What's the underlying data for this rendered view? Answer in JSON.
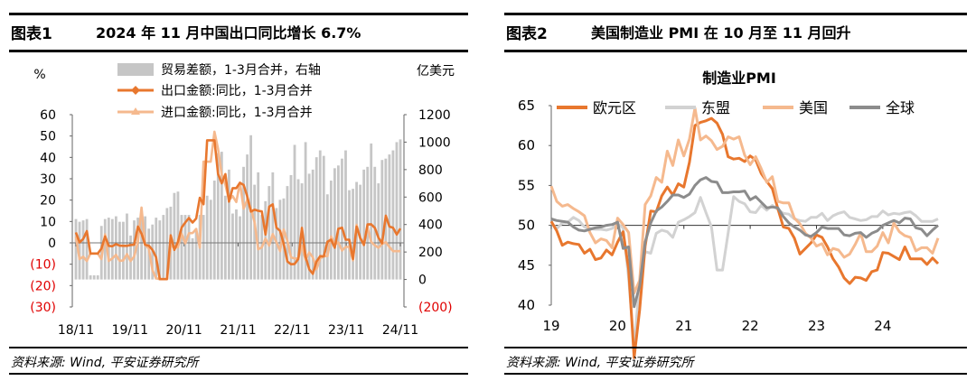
{
  "figures": [
    {
      "number": "图表1",
      "title": "2024 年 11 月中国出口同比增长 6.7%",
      "source": "资料来源: Wind, 平安证券研究所"
    },
    {
      "number": "图表2",
      "title": "美国制造业 PMI 在 10 月至 11 月回升",
      "source": "资料来源: Wind, 平安证券研究所"
    }
  ],
  "chart_data": [
    {
      "type": "bar+line",
      "title": "",
      "left_unit": "%",
      "right_unit": "亿美元",
      "ylim_left": [
        -30,
        60
      ],
      "ylim_right": [
        -200,
        1200
      ],
      "left_ticks": [
        "60",
        "50",
        "40",
        "30",
        "20",
        "10",
        "0",
        "(10)",
        "(20)",
        "(30)"
      ],
      "left_ticks_neg_color": "#e00000",
      "right_ticks": [
        "1200",
        "1000",
        "800",
        "600",
        "400",
        "200",
        "0",
        "(200)"
      ],
      "right_ticks_neg_color": "#e00000",
      "x_labels": [
        "18/11",
        "19/11",
        "20/11",
        "21/11",
        "22/11",
        "23/11",
        "24/11"
      ],
      "x_range": [
        "2018-11",
        "2024-11"
      ],
      "legend": [
        "贸易差额，1-3月合并，右轴",
        "出口金额:同比，1-3月合并",
        "进口金额:同比，1-3月合并"
      ],
      "colors": {
        "bar": "#c6c6c6",
        "export": "#e8772e",
        "import": "#f5b98e"
      },
      "trade_balance": [
        440,
        420,
        430,
        440,
        30,
        30,
        30,
        390,
        440,
        450,
        440,
        460,
        420,
        420,
        480,
        320,
        430,
        450,
        460,
        460,
        370,
        400,
        450,
        430,
        470,
        520,
        530,
        630,
        640,
        470,
        470,
        470,
        300,
        370,
        470,
        470,
        610,
        580,
        720,
        920,
        930,
        610,
        800,
        480,
        510,
        460,
        820,
        910,
        1050,
        690,
        780,
        470,
        570,
        680,
        780,
        520,
        580,
        590,
        680,
        760,
        980,
        730,
        700,
        1000,
        770,
        800,
        890,
        940,
        900,
        620,
        720,
        810,
        830,
        880,
        940,
        650,
        660,
        710,
        690,
        800,
        820,
        990,
        820,
        700,
        870,
        880,
        910,
        940,
        1000,
        1020
      ],
      "export_yoy": [
        4.9,
        0.2,
        1.8,
        5.5,
        -5,
        -5,
        -5,
        -2.7,
        3,
        -1.4,
        -1.6,
        -0.6,
        -1.3,
        -1.4,
        -1.4,
        -1,
        -0.9,
        7.6,
        4.3,
        -0.9,
        -1.3,
        -3.3,
        -6.7,
        -17,
        -17,
        -17,
        3.5,
        -3.3,
        0.5,
        7.2,
        9.5,
        11.6,
        9.5,
        11.4,
        21.1,
        18.1,
        48,
        48,
        48,
        32.3,
        27.9,
        32.2,
        19.3,
        25.6,
        25.6,
        28.1,
        27.1,
        21.7,
        14.6,
        15.5,
        15,
        14.7,
        3.9,
        16.9,
        18,
        7.1,
        5.6,
        -0.3,
        -8.7,
        -10,
        -9.9,
        -7.5,
        7,
        -6.4,
        -12.4,
        -14.5,
        -8.8,
        -6.2,
        -6.4,
        0.5,
        1.5,
        -2.3,
        6.6,
        7.1,
        1.5,
        1.5,
        -7.5,
        7.6,
        2.4,
        -1,
        8.6,
        8.7,
        7,
        2.4,
        -0.2,
        12.7,
        7.6,
        7.1,
        3.9,
        6.7
      ],
      "import_yoy": [
        3,
        -7.6,
        -6.5,
        -8.5,
        -5,
        -5,
        -5,
        -7.6,
        4,
        -8.5,
        -7.3,
        -5.6,
        -8.4,
        -8.2,
        -5.3,
        -8.5,
        -6.4,
        0.4,
        16.5,
        -0.9,
        -2.7,
        -12.7,
        -16.6,
        -17,
        -17,
        -17,
        -1.4,
        -2.1,
        -2.1,
        4.3,
        -0.3,
        4.5,
        4.6,
        6.5,
        -2.3,
        38,
        38,
        38,
        52,
        44,
        32,
        27.2,
        20,
        21.9,
        19.1,
        28.2,
        16,
        20.1,
        16.2,
        9.6,
        -3,
        -2.1,
        2,
        -1.3,
        4.1,
        0.3,
        -3.9,
        6.2,
        1,
        -6.8,
        -7.3,
        -7.3,
        -1.4,
        -7.9,
        -4.5,
        -6.8,
        -12.4,
        -7.3,
        -6.2,
        -6.2,
        3,
        -0.8,
        0.2,
        -3.6,
        -1.9,
        -1.9,
        -8.2,
        8.4,
        1.8,
        -0.3,
        7.2,
        0.5,
        -1.2,
        -2.3,
        -0.5,
        0.3,
        -1.9,
        -3.9,
        -3.9,
        -3.9
      ]
    },
    {
      "type": "line",
      "title": "制造业PMI",
      "ylim": [
        40,
        65
      ],
      "y_ticks": [
        "65",
        "60",
        "55",
        "50",
        "45",
        "40"
      ],
      "x_labels": [
        "19",
        "20",
        "21",
        "22",
        "23",
        "24"
      ],
      "x_range": [
        "2019-01",
        "2024-11"
      ],
      "legend": [
        "欧元区",
        "东盟",
        "美国",
        "全球"
      ],
      "colors": {
        "euro": "#e8772e",
        "asean": "#d2d2d2",
        "us": "#f5b98e",
        "global": "#8c8c8c"
      },
      "series": [
        {
          "name": "欧元区",
          "values": [
            50.5,
            49.3,
            47.5,
            47.9,
            47.7,
            47.6,
            46.5,
            47,
            45.7,
            45.9,
            46.9,
            46.3,
            47.9,
            49.2,
            44.5,
            33.4,
            39.4,
            47.4,
            51.8,
            51.7,
            53.7,
            54.8,
            53.8,
            55.2,
            54.8,
            57.9,
            62.5,
            62.9,
            63.1,
            63.4,
            62.8,
            61.4,
            58.6,
            58.3,
            58.4,
            58,
            58.7,
            58.2,
            56.5,
            55.5,
            54.6,
            52.1,
            49.8,
            49.6,
            48.4,
            46.4,
            47.1,
            47.8,
            48.8,
            48.5,
            47.3,
            45.8,
            44.8,
            43.4,
            42.7,
            43.5,
            43.4,
            43.1,
            44.2,
            44.4,
            46.6,
            46.5,
            46.1,
            45.7,
            47.3,
            45.8,
            45.8,
            45.8,
            45.1,
            45.9,
            45.2
          ]
        },
        {
          "name": "东盟",
          "values": [
            50.3,
            49.6,
            50.3,
            50.4,
            51,
            50.6,
            49.8,
            49.6,
            49.5,
            49.5,
            49.4,
            49.6,
            50.2,
            49.7,
            43.4,
            34.7,
            43.1,
            46.7,
            46.5,
            49,
            49.4,
            49.2,
            48.5,
            50.4,
            50.7,
            51.1,
            51.6,
            53.5,
            51.6,
            49.8,
            44.4,
            44.4,
            49,
            53.6,
            53,
            52.7,
            51.7,
            51.6,
            52.5,
            51.9,
            52.5,
            52,
            51.5,
            51.4,
            50.8,
            50.6,
            50.5,
            51,
            51,
            51.5,
            50.6,
            51.2,
            51.5,
            51.7,
            51,
            50.8,
            50.6,
            50.7,
            51.1,
            51.1,
            51.8,
            51.3,
            51.5,
            51.4,
            51.6,
            51.7,
            51.2,
            50.5,
            50.5,
            50.5,
            50.8
          ]
        },
        {
          "name": "美国",
          "values": [
            54.9,
            53,
            52.4,
            52.6,
            52.1,
            51.7,
            51.2,
            49.1,
            47.8,
            48.3,
            48.1,
            47.2,
            50.9,
            50.1,
            49.1,
            41.5,
            43.1,
            52.6,
            53.7,
            56,
            55.4,
            59.3,
            57.5,
            60.7,
            58.7,
            60.8,
            64.7,
            60.7,
            61.2,
            60.6,
            59.5,
            59.9,
            61.1,
            60.8,
            61.1,
            58.8,
            57.6,
            58.6,
            57.1,
            55.4,
            56.1,
            53,
            52.8,
            52.8,
            50.9,
            50.2,
            49,
            48.4,
            47.4,
            47.7,
            46.3,
            47.1,
            46.9,
            46,
            46.4,
            47.6,
            49,
            46.7,
            46.7,
            47.4,
            49.1,
            47.8,
            50.3,
            49.2,
            48.7,
            48.5,
            46.8,
            47.2,
            47.2,
            46.5,
            48.4
          ]
        },
        {
          "name": "全球",
          "values": [
            50.8,
            50.6,
            50.5,
            50.4,
            49.8,
            49.4,
            49.3,
            49.5,
            49.7,
            49.8,
            50,
            50.1,
            50.4,
            47.1,
            47.3,
            39.8,
            42.4,
            47.9,
            50.3,
            51.8,
            52.3,
            53,
            53.8,
            53.8,
            53.5,
            53.9,
            55,
            55.7,
            56,
            55.5,
            55.4,
            54.1,
            54.1,
            54.2,
            54.2,
            54.3,
            53.2,
            53.6,
            52.9,
            52.2,
            52.3,
            52.2,
            51.1,
            50.3,
            49.8,
            49.4,
            48.8,
            48.6,
            49.1,
            49.8,
            49.6,
            49.6,
            49.6,
            48.8,
            48.7,
            49,
            49.1,
            48.5,
            49,
            49.3,
            50,
            50.3,
            50.6,
            50.3,
            50.9,
            50.8,
            49.7,
            49.5,
            48.7,
            49.4,
            50
          ]
        }
      ]
    }
  ]
}
